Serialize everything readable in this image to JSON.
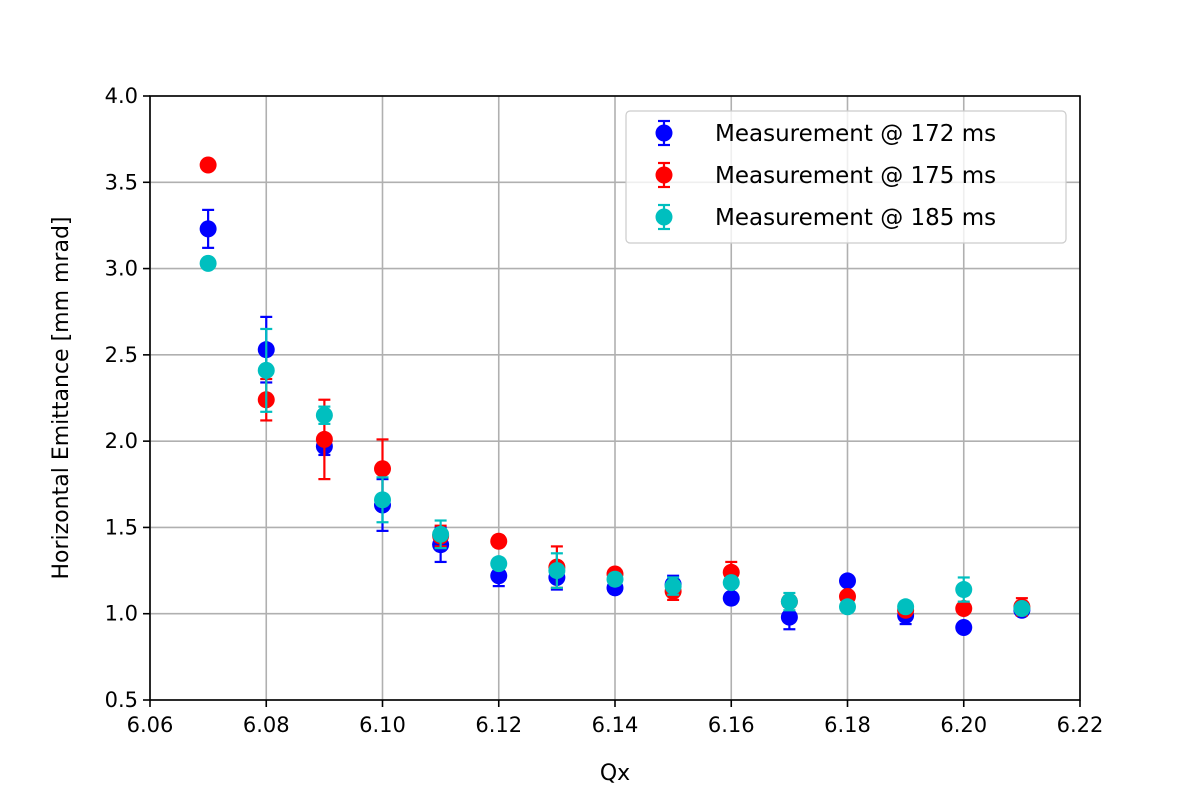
{
  "chart_data": {
    "type": "scatter",
    "title": "",
    "xlabel": "Qx",
    "ylabel": "Horizontal Emittance [mm mrad]",
    "xlim": [
      6.06,
      6.22
    ],
    "ylim": [
      0.5,
      4.0
    ],
    "xticks": [
      "6.06",
      "6.08",
      "6.10",
      "6.12",
      "6.14",
      "6.16",
      "6.18",
      "6.20",
      "6.22"
    ],
    "yticks": [
      "0.5",
      "1.0",
      "1.5",
      "2.0",
      "2.5",
      "3.0",
      "3.5",
      "4.0"
    ],
    "grid": true,
    "legend_position": "top-right",
    "series": [
      {
        "name": "Measurement @ 172 ms",
        "color": "#0000ff",
        "x": [
          6.07,
          6.08,
          6.09,
          6.1,
          6.11,
          6.12,
          6.13,
          6.14,
          6.15,
          6.16,
          6.17,
          6.18,
          6.19,
          6.2,
          6.21
        ],
        "y": [
          3.23,
          2.53,
          1.97,
          1.63,
          1.4,
          1.22,
          1.21,
          1.15,
          1.17,
          1.09,
          0.98,
          1.19,
          0.99,
          0.92,
          1.02
        ],
        "err": [
          0.11,
          0.19,
          0.05,
          0.15,
          0.1,
          0.06,
          0.07,
          0.03,
          0.05,
          0.02,
          0.07,
          0.02,
          0.05,
          0.02,
          0.03
        ]
      },
      {
        "name": "Measurement @ 175 ms",
        "color": "#ff0000",
        "x": [
          6.07,
          6.08,
          6.09,
          6.1,
          6.11,
          6.12,
          6.13,
          6.14,
          6.15,
          6.16,
          6.17,
          6.18,
          6.19,
          6.2,
          6.21
        ],
        "y": [
          3.6,
          2.24,
          2.01,
          1.84,
          1.45,
          1.42,
          1.27,
          1.23,
          1.13,
          1.24,
          1.07,
          1.1,
          1.02,
          1.03,
          1.04
        ],
        "err": [
          0.01,
          0.12,
          0.23,
          0.17,
          0.06,
          0.03,
          0.12,
          0.03,
          0.05,
          0.06,
          0.03,
          0.02,
          0.03,
          0.02,
          0.05
        ]
      },
      {
        "name": "Measurement @ 185 ms",
        "color": "#00bfbf",
        "x": [
          6.07,
          6.08,
          6.09,
          6.1,
          6.11,
          6.12,
          6.13,
          6.14,
          6.15,
          6.16,
          6.17,
          6.18,
          6.19,
          6.2,
          6.21
        ],
        "y": [
          3.03,
          2.41,
          2.15,
          1.66,
          1.46,
          1.29,
          1.25,
          1.2,
          1.16,
          1.18,
          1.07,
          1.04,
          1.04,
          1.14,
          1.03
        ],
        "err": [
          0.01,
          0.24,
          0.05,
          0.13,
          0.08,
          0.02,
          0.1,
          0.03,
          0.05,
          0.02,
          0.05,
          0.02,
          0.02,
          0.07,
          0.02
        ]
      }
    ]
  }
}
